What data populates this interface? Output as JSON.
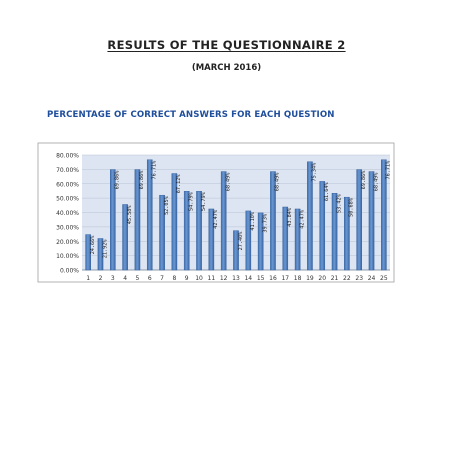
{
  "page": {
    "title": "RESULTS OF THE QUESTIONNAIRE 2",
    "subtitle": "(MARCH 2016)"
  },
  "chart_data": {
    "type": "bar",
    "title": "PERCENTAGE OF CORRECT ANSWERS FOR EACH QUESTION",
    "xlabel": "",
    "ylabel": "",
    "categories": [
      "1",
      "2",
      "3",
      "4",
      "5",
      "6",
      "7",
      "8",
      "9",
      "10",
      "11",
      "12",
      "13",
      "14",
      "15",
      "16",
      "17",
      "18",
      "19",
      "20",
      "21",
      "22",
      "23",
      "24",
      "25"
    ],
    "values": [
      24.66,
      21.92,
      69.86,
      45.58,
      69.86,
      76.71,
      52.05,
      67.12,
      54.79,
      54.79,
      42.47,
      68.49,
      27.4,
      41.1,
      39.73,
      68.49,
      43.84,
      42.47,
      75.34,
      61.64,
      53.42,
      50.68,
      69.86,
      68.49,
      76.71
    ],
    "data_labels": [
      "24.66%",
      "21.92%",
      "69.86%",
      "45.58%",
      "69.86%",
      "76.71%",
      "52.05%",
      "67.12%",
      "54.79%",
      "54.79%",
      "42.47%",
      "68.49%",
      "27.40%",
      "41.10%",
      "39.73%",
      "68.49%",
      "43.84%",
      "42.47%",
      "75.34%",
      "61.64%",
      "53.42%",
      "50.68%",
      "69.86%",
      "68.49%",
      "76.71%"
    ],
    "y_ticks": [
      "0.00%",
      "10.00%",
      "20.00%",
      "30.00%",
      "40.00%",
      "50.00%",
      "60.00%",
      "70.00%",
      "80.00%"
    ],
    "ylim": [
      0,
      80
    ],
    "grid": true,
    "legend": "none",
    "colors": {
      "bar": "#4a7bbd",
      "bar_edge": "#2d5a96",
      "plot_bg": "#dde5f2",
      "grid": "#b8c3d4",
      "heading": "#1f4e9c"
    }
  }
}
